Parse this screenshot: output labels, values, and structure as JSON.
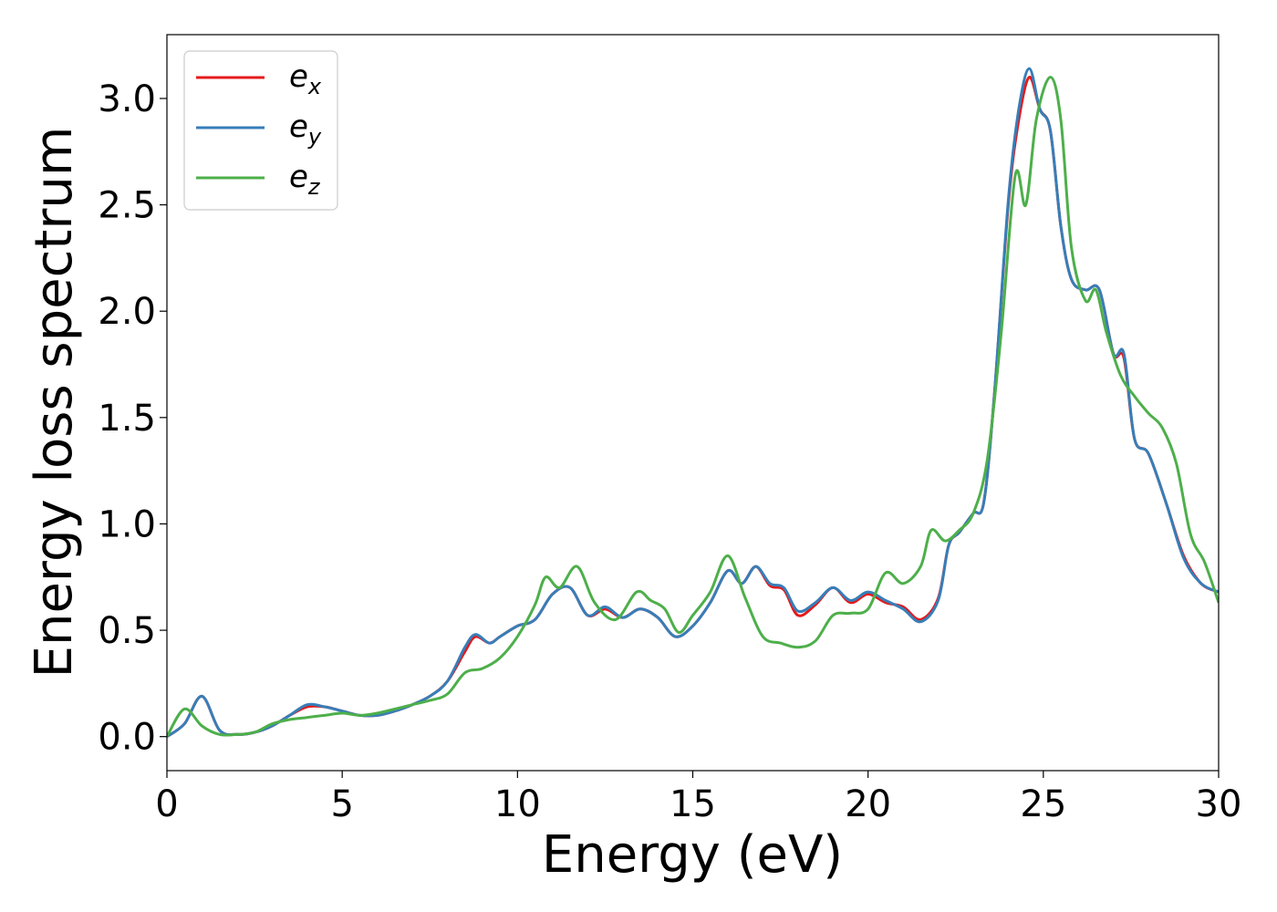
{
  "chart_data": {
    "type": "line",
    "title": "",
    "xlabel": "Energy (eV)",
    "ylabel": "Energy loss spectrum",
    "xlim": [
      0,
      30
    ],
    "ylim": [
      -0.16,
      3.3
    ],
    "xticks": [
      "0",
      "5",
      "10",
      "15",
      "20",
      "25",
      "30"
    ],
    "yticks": [
      "0.0",
      "0.5",
      "1.0",
      "1.5",
      "2.0",
      "2.5",
      "3.0"
    ],
    "grid": false,
    "legend_position": "top-left",
    "series": [
      {
        "name": "e",
        "subscript": "x",
        "color": "#e41a1c",
        "x": [
          0,
          0.5,
          1.0,
          1.5,
          2.0,
          2.5,
          3.0,
          3.5,
          4.0,
          4.5,
          5.0,
          5.5,
          6.0,
          6.5,
          7.0,
          7.5,
          8.0,
          8.5,
          8.8,
          9.2,
          9.5,
          10.0,
          10.5,
          11.0,
          11.5,
          12.0,
          12.5,
          13.0,
          13.5,
          14.0,
          14.5,
          15.0,
          15.5,
          16.0,
          16.4,
          16.8,
          17.2,
          17.6,
          18.0,
          18.5,
          19.0,
          19.5,
          20.0,
          20.5,
          21.0,
          21.5,
          22.0,
          22.3,
          22.6,
          23.0,
          23.3,
          23.6,
          24.0,
          24.3,
          24.6,
          24.9,
          25.2,
          25.5,
          25.8,
          26.2,
          26.6,
          27.0,
          27.3,
          27.6,
          28.0,
          28.5,
          29.0,
          29.5,
          30.0
        ],
        "y": [
          0,
          0.06,
          0.19,
          0.03,
          0.01,
          0.02,
          0.05,
          0.1,
          0.14,
          0.14,
          0.12,
          0.1,
          0.1,
          0.12,
          0.15,
          0.19,
          0.26,
          0.4,
          0.47,
          0.44,
          0.47,
          0.52,
          0.55,
          0.67,
          0.7,
          0.57,
          0.6,
          0.56,
          0.6,
          0.56,
          0.47,
          0.52,
          0.63,
          0.78,
          0.72,
          0.8,
          0.71,
          0.69,
          0.57,
          0.62,
          0.7,
          0.63,
          0.67,
          0.63,
          0.61,
          0.55,
          0.65,
          0.9,
          0.96,
          1.05,
          1.1,
          1.6,
          2.5,
          2.9,
          3.1,
          2.95,
          2.85,
          2.4,
          2.15,
          2.1,
          2.1,
          1.8,
          1.78,
          1.4,
          1.33,
          1.1,
          0.85,
          0.72,
          0.68
        ]
      },
      {
        "name": "e",
        "subscript": "y",
        "color": "#377eb8",
        "x": [
          0,
          0.5,
          1.0,
          1.5,
          2.0,
          2.5,
          3.0,
          3.5,
          4.0,
          4.5,
          5.0,
          5.5,
          6.0,
          6.5,
          7.0,
          7.5,
          8.0,
          8.5,
          8.8,
          9.2,
          9.5,
          10.0,
          10.5,
          11.0,
          11.5,
          12.0,
          12.5,
          13.0,
          13.5,
          14.0,
          14.5,
          15.0,
          15.5,
          16.0,
          16.4,
          16.8,
          17.2,
          17.6,
          18.0,
          18.5,
          19.0,
          19.5,
          20.0,
          20.5,
          21.0,
          21.5,
          22.0,
          22.3,
          22.6,
          23.0,
          23.3,
          23.6,
          24.0,
          24.3,
          24.6,
          24.9,
          25.2,
          25.5,
          25.8,
          26.2,
          26.6,
          27.0,
          27.3,
          27.6,
          28.0,
          28.5,
          29.0,
          29.5,
          30.0
        ],
        "y": [
          0,
          0.06,
          0.19,
          0.03,
          0.01,
          0.02,
          0.05,
          0.1,
          0.15,
          0.14,
          0.12,
          0.1,
          0.1,
          0.12,
          0.15,
          0.19,
          0.26,
          0.42,
          0.48,
          0.44,
          0.47,
          0.52,
          0.55,
          0.67,
          0.7,
          0.57,
          0.61,
          0.56,
          0.6,
          0.56,
          0.47,
          0.52,
          0.63,
          0.78,
          0.72,
          0.8,
          0.72,
          0.7,
          0.59,
          0.63,
          0.7,
          0.64,
          0.68,
          0.64,
          0.6,
          0.54,
          0.64,
          0.9,
          0.96,
          1.05,
          1.1,
          1.6,
          2.52,
          2.95,
          3.14,
          2.95,
          2.85,
          2.4,
          2.15,
          2.1,
          2.1,
          1.8,
          1.8,
          1.4,
          1.33,
          1.1,
          0.84,
          0.72,
          0.68
        ]
      },
      {
        "name": "e",
        "subscript": "z",
        "color": "#4daf4a",
        "x": [
          0,
          0.5,
          1.0,
          1.5,
          2.0,
          2.5,
          3.0,
          3.5,
          4.0,
          4.5,
          5.0,
          5.5,
          6.0,
          6.5,
          7.0,
          7.5,
          8.0,
          8.5,
          9.0,
          9.5,
          10.0,
          10.5,
          10.8,
          11.2,
          11.7,
          12.2,
          12.8,
          13.4,
          13.8,
          14.2,
          14.6,
          15.0,
          15.5,
          16.0,
          16.5,
          17.0,
          17.5,
          18.0,
          18.5,
          19.0,
          19.5,
          20.0,
          20.5,
          21.0,
          21.5,
          21.8,
          22.2,
          22.6,
          23.0,
          23.4,
          23.8,
          24.2,
          24.5,
          24.8,
          25.2,
          25.5,
          25.8,
          26.2,
          26.5,
          26.8,
          27.2,
          27.6,
          28.0,
          28.4,
          28.8,
          29.2,
          29.6,
          30.0
        ],
        "y": [
          0,
          0.13,
          0.05,
          0.01,
          0.01,
          0.02,
          0.06,
          0.08,
          0.09,
          0.1,
          0.11,
          0.1,
          0.11,
          0.13,
          0.15,
          0.17,
          0.2,
          0.3,
          0.32,
          0.37,
          0.47,
          0.62,
          0.75,
          0.7,
          0.8,
          0.63,
          0.55,
          0.68,
          0.64,
          0.6,
          0.49,
          0.57,
          0.68,
          0.85,
          0.65,
          0.47,
          0.44,
          0.42,
          0.45,
          0.57,
          0.58,
          0.6,
          0.77,
          0.72,
          0.8,
          0.97,
          0.92,
          0.97,
          1.05,
          1.3,
          1.9,
          2.64,
          2.5,
          2.9,
          3.1,
          2.9,
          2.3,
          2.05,
          2.1,
          1.9,
          1.7,
          1.6,
          1.52,
          1.45,
          1.28,
          0.95,
          0.82,
          0.63
        ]
      }
    ]
  }
}
